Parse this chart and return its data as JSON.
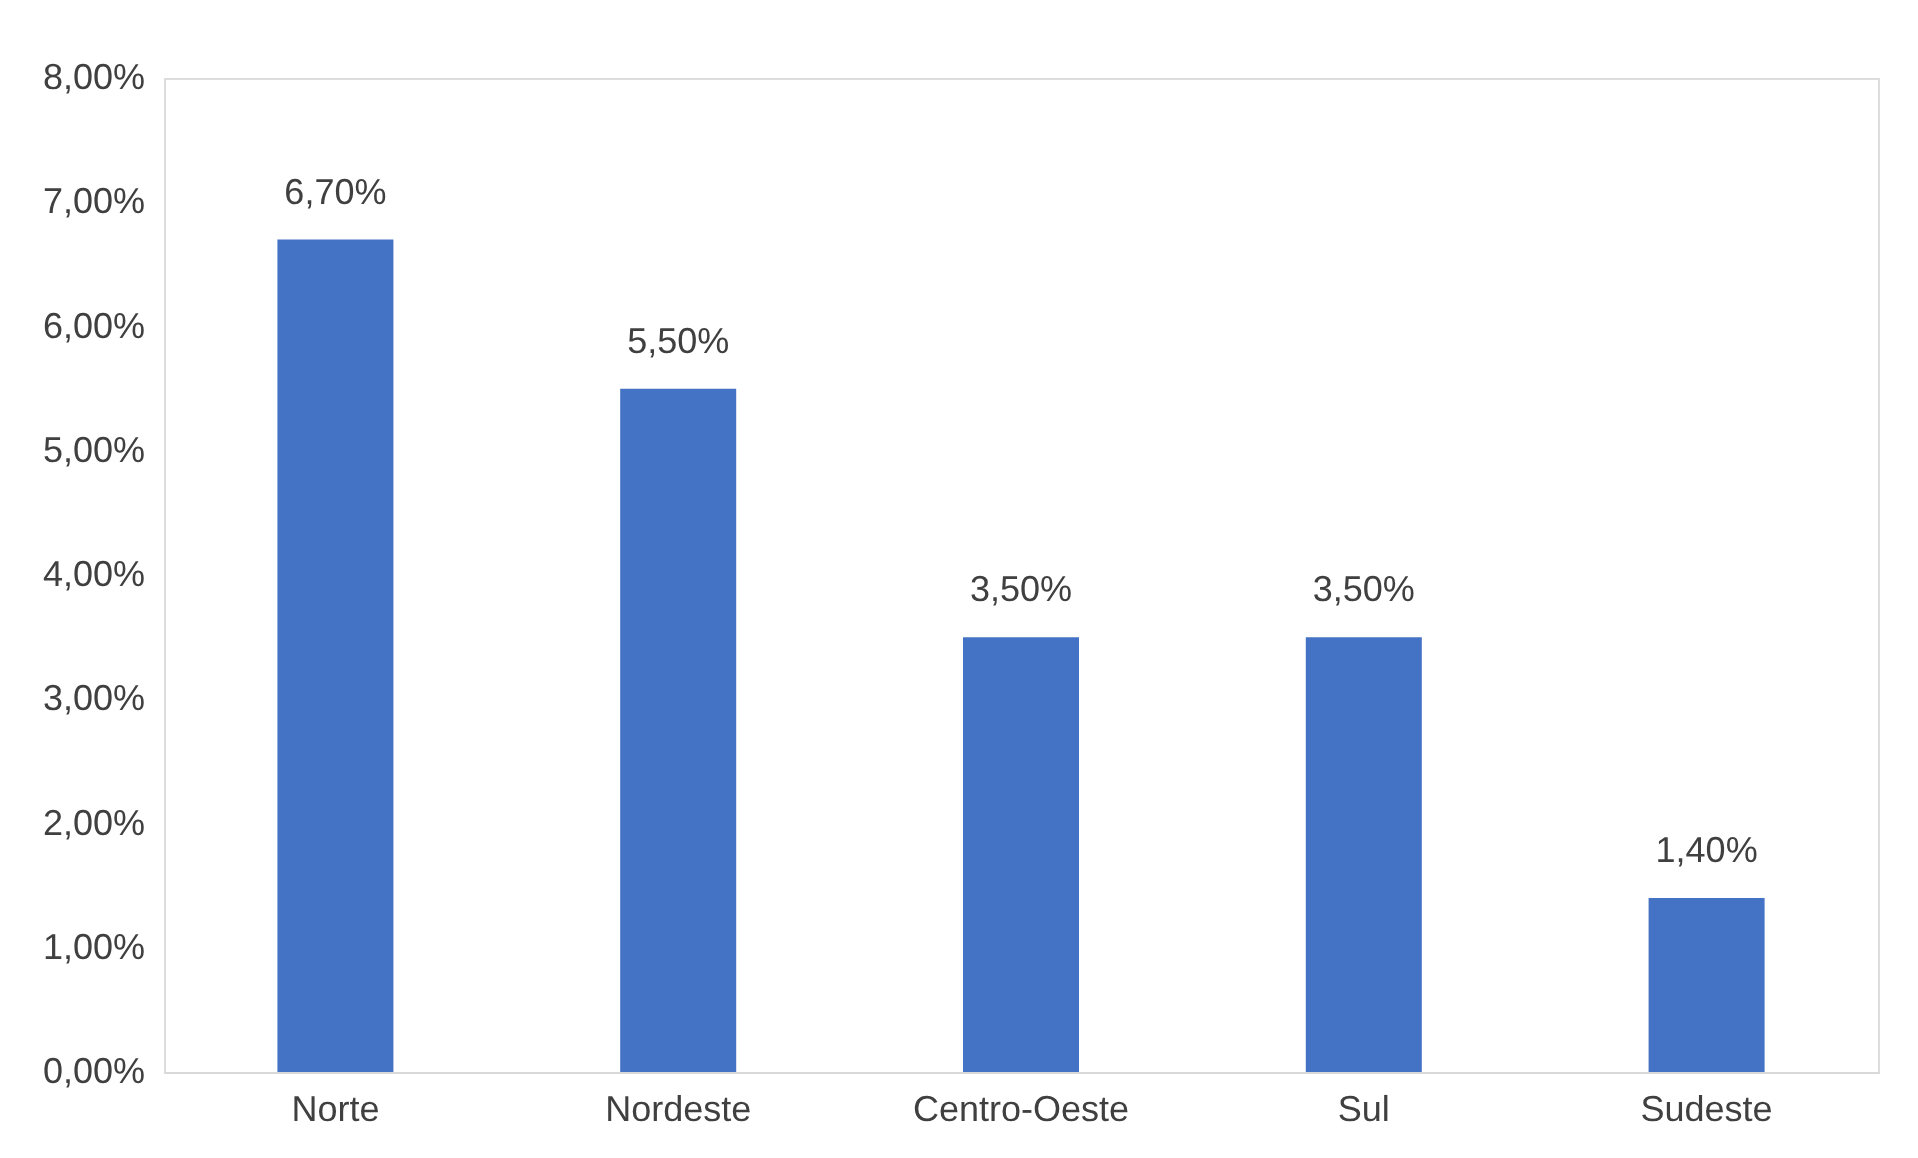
{
  "chart_data": {
    "type": "bar",
    "categories": [
      "Norte",
      "Nordeste",
      "Centro-Oeste",
      "Sul",
      "Sudeste"
    ],
    "values": [
      6.7,
      5.5,
      3.5,
      3.5,
      1.4
    ],
    "color": "#4472c4",
    "value_labels": [
      "6,70%",
      "5,50%",
      "3,50%",
      "3,50%",
      "1,40%"
    ],
    "ylim": [
      0,
      8
    ],
    "yticks": [
      {
        "value": 0,
        "label": "0,00%"
      },
      {
        "value": 1,
        "label": "1,00%"
      },
      {
        "value": 2,
        "label": "2,00%"
      },
      {
        "value": 3,
        "label": "3,00%"
      },
      {
        "value": 4,
        "label": "4,00%"
      },
      {
        "value": 5,
        "label": "5,00%"
      },
      {
        "value": 6,
        "label": "6,00%"
      },
      {
        "value": 7,
        "label": "7,00%"
      },
      {
        "value": 8,
        "label": "8,00%"
      }
    ],
    "grid": false
  }
}
